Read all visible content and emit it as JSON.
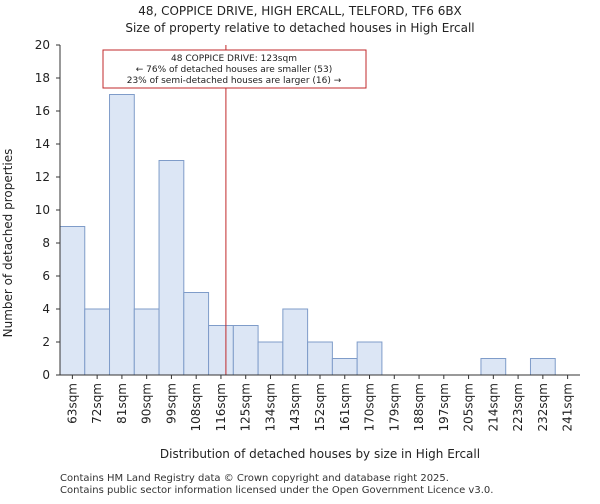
{
  "chart_data": {
    "type": "bar",
    "title": "48, COPPICE DRIVE, HIGH ERCALL, TELFORD, TF6 6BX",
    "subtitle": "Size of property relative to detached houses in High Ercall",
    "xlabel": "Distribution of detached houses by size in High Ercall",
    "ylabel": "Number of detached properties",
    "categories": [
      "63sqm",
      "72sqm",
      "81sqm",
      "90sqm",
      "99sqm",
      "108sqm",
      "116sqm",
      "125sqm",
      "134sqm",
      "143sqm",
      "152sqm",
      "161sqm",
      "170sqm",
      "179sqm",
      "188sqm",
      "197sqm",
      "205sqm",
      "214sqm",
      "223sqm",
      "232sqm",
      "241sqm"
    ],
    "values": [
      9,
      4,
      17,
      4,
      13,
      5,
      3,
      3,
      2,
      4,
      2,
      1,
      2,
      0,
      0,
      0,
      0,
      1,
      0,
      1,
      0
    ],
    "ylim": [
      0,
      20
    ],
    "yticks": [
      0,
      2,
      4,
      6,
      8,
      10,
      12,
      14,
      16,
      18,
      20
    ],
    "property_line": {
      "category_position": 6.7,
      "value_sqm": 123
    },
    "annotation": {
      "lines": [
        "48 COPPICE DRIVE: 123sqm",
        "← 76% of detached houses are smaller (53)",
        "23% of semi-detached houses are larger (16) →"
      ]
    },
    "colors": {
      "bar_fill": "#dce6f5",
      "bar_stroke": "#7f9cc9",
      "property_line": "#c0292b",
      "annotation_border": "#c0292b"
    },
    "grid": false
  },
  "footer": {
    "line1": "Contains HM Land Registry data © Crown copyright and database right 2025.",
    "line2": "Contains public sector information licensed under the Open Government Licence v3.0."
  }
}
